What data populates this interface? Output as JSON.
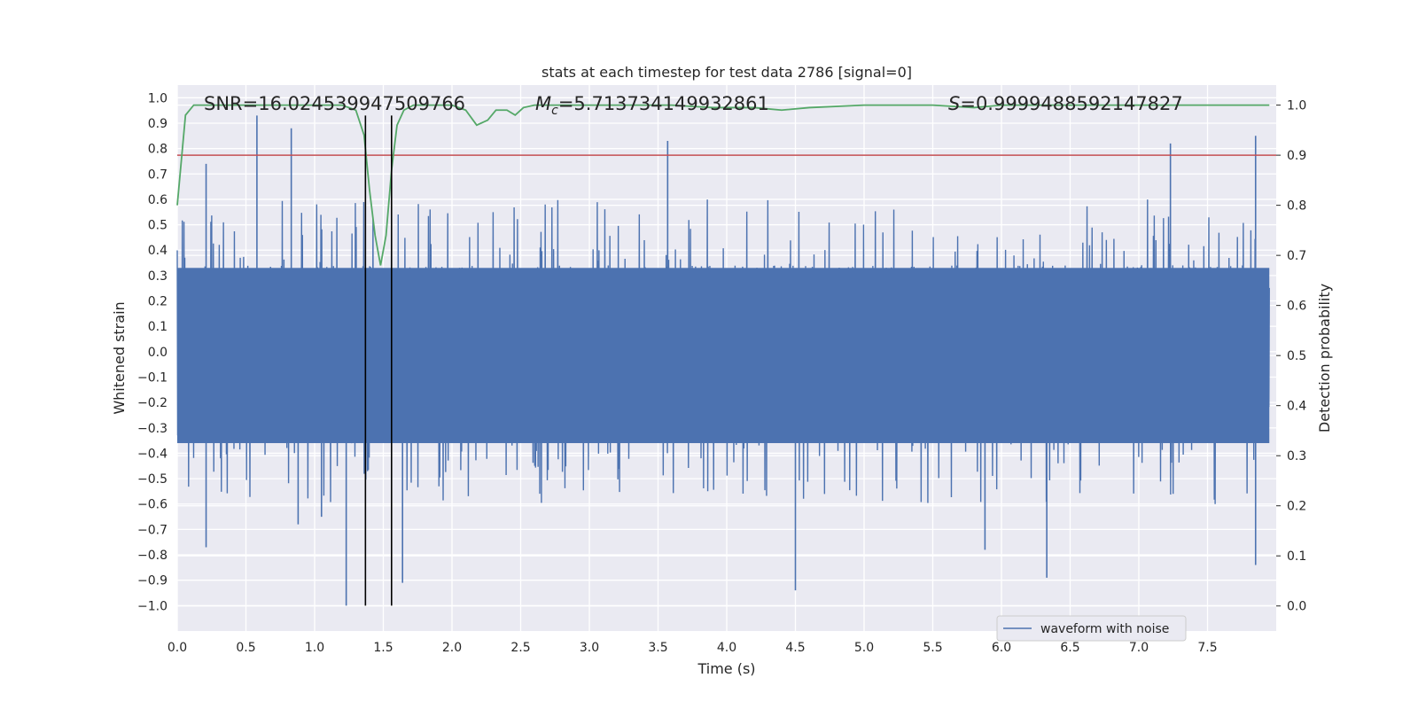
{
  "chart_data": {
    "type": "line",
    "title": "stats at each timestep for test data 2786 [signal=0]",
    "xlabel": "Time (s)",
    "ylabel": "Whitened strain",
    "ylabel_right": "Detection probability",
    "xlim": [
      0.0,
      8.0
    ],
    "ylim": [
      -1.1,
      1.05
    ],
    "ylim_right": [
      -0.05,
      1.04
    ],
    "x_ticks": [
      "0.0",
      "0.5",
      "1.0",
      "1.5",
      "2.0",
      "2.5",
      "3.0",
      "3.5",
      "4.0",
      "4.5",
      "5.0",
      "5.5",
      "6.0",
      "6.5",
      "7.0",
      "7.5"
    ],
    "y_ticks": [
      "1.0",
      "0.9",
      "0.8",
      "0.7",
      "0.6",
      "0.5",
      "0.4",
      "0.3",
      "0.2",
      "0.1",
      "0.0",
      "−0.1",
      "−0.2",
      "−0.3",
      "−0.4",
      "−0.5",
      "−0.6",
      "−0.7",
      "−0.8",
      "−0.9",
      "−1.0"
    ],
    "y_ticks_right": [
      "1.0",
      "0.9",
      "0.8",
      "0.7",
      "0.6",
      "0.5",
      "0.4",
      "0.3",
      "0.2",
      "0.1",
      "0.0"
    ],
    "annotations": {
      "snr": "SNR=16.024539947509766",
      "mc_symbol": "M",
      "mc_sub": "c",
      "mc_value": "=5.713734149932861",
      "s_symbol": "S",
      "s_value": "=0.9999488592147827"
    },
    "vertical_lines": [
      1.37,
      1.56
    ],
    "threshold_right": 0.9,
    "legend": {
      "label": "waveform with noise",
      "placement": "lower right"
    },
    "series": [
      {
        "name": "waveform with noise",
        "color": "#4c72b0",
        "description": "dense noise trace, envelope mostly within ±0.35 with spikes to about ±0.9",
        "spikes": [
          {
            "t": 0.58,
            "v": 0.93
          },
          {
            "t": 0.83,
            "v": 0.88
          },
          {
            "t": 0.21,
            "v": 0.74
          },
          {
            "t": 1.23,
            "v": -1.0
          },
          {
            "t": 0.21,
            "v": -0.77
          },
          {
            "t": 4.5,
            "v": -0.94
          },
          {
            "t": 6.33,
            "v": -0.89
          },
          {
            "t": 7.85,
            "v": -0.84
          },
          {
            "t": 7.85,
            "v": 0.85
          },
          {
            "t": 7.23,
            "v": 0.82
          },
          {
            "t": 3.57,
            "v": 0.83
          },
          {
            "t": 1.64,
            "v": -0.91
          },
          {
            "t": 5.88,
            "v": -0.78
          },
          {
            "t": 0.88,
            "v": -0.68
          },
          {
            "t": 1.05,
            "v": -0.65
          }
        ]
      },
      {
        "name": "detection probability",
        "color": "#55a868",
        "axis": "right",
        "x": [
          0.0,
          0.06,
          0.12,
          0.2,
          0.3,
          0.5,
          0.7,
          0.9,
          1.1,
          1.2,
          1.3,
          1.36,
          1.4,
          1.44,
          1.48,
          1.52,
          1.56,
          1.6,
          1.65,
          1.72,
          1.8,
          1.9,
          2.0,
          2.1,
          2.18,
          2.26,
          2.32,
          2.4,
          2.46,
          2.52,
          2.6,
          2.8,
          3.2,
          3.6,
          3.9,
          4.0,
          4.2,
          4.4,
          4.6,
          5.0,
          5.5,
          5.8,
          6.0,
          6.5,
          7.0,
          7.5,
          7.95
        ],
        "values": [
          0.8,
          0.98,
          1.0,
          1.0,
          1.0,
          1.0,
          1.0,
          1.0,
          1.0,
          1.0,
          0.99,
          0.94,
          0.83,
          0.74,
          0.68,
          0.74,
          0.87,
          0.96,
          0.99,
          1.0,
          1.0,
          1.0,
          1.0,
          0.99,
          0.96,
          0.97,
          0.99,
          0.99,
          0.98,
          0.995,
          1.0,
          1.0,
          1.0,
          1.0,
          0.995,
          0.995,
          0.995,
          0.99,
          0.995,
          1.0,
          1.0,
          0.995,
          1.0,
          1.0,
          1.0,
          1.0,
          1.0
        ]
      }
    ]
  }
}
